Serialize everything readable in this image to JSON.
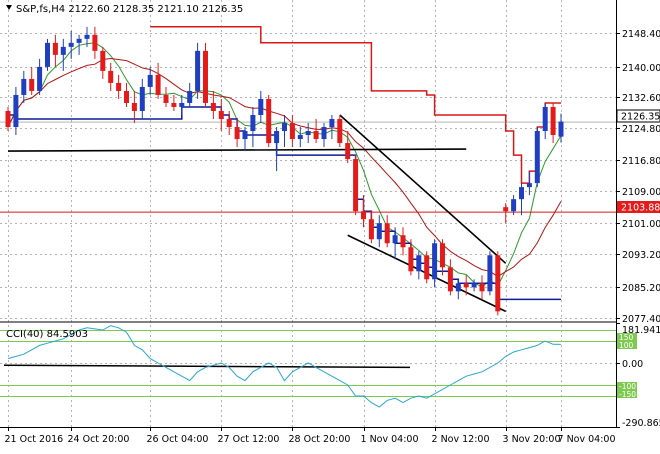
{
  "chart_title": "S&P,fs,H4  2122.60 2128.35 2121.10 2126.35",
  "price_tags": {
    "current": "2126.35",
    "line": "2103.88"
  },
  "cci_label": "CCI(40) 84.5903",
  "cci_levels": [
    "150",
    "100",
    "-100",
    "-150"
  ],
  "colors": {
    "bull": "#1f3fc0",
    "bear": "#e41b1b",
    "ma_fast": "#2f9a2f",
    "ma_slow": "#b41414",
    "step": "#0c1c96",
    "resistance": "#d81818",
    "cci": "#2aa7cf",
    "cci_level": "#7ec94f",
    "trendline": "#000000",
    "grid": "#b4b4b4"
  },
  "chart_data": [
    {
      "type": "candlestick",
      "title": "S&P,fs,H4  2122.60 2128.35 2121.10 2126.35",
      "ohlc_last": {
        "open": 2122.6,
        "high": 2128.35,
        "low": 2121.1,
        "close": 2126.35
      },
      "x_tick_labels": [
        "21 Oct 2016",
        "24 Oct 20:00",
        "26 Oct 04:00",
        "27 Oct 12:00",
        "28 Oct 20:00",
        "1 Nov 04:00",
        "2 Nov 12:00",
        "3 Nov 20:00",
        "7 Nov 04:00"
      ],
      "y_tick_labels": [
        "2148.40",
        "2140.00",
        "2132.60",
        "2124.80",
        "2116.80",
        "2109.00",
        "2101.00",
        "2093.20",
        "2085.20",
        "2077.40"
      ],
      "ylim": [
        2076.6,
        2152.2
      ],
      "horizontal_level": 2103.88,
      "current_price": 2126.35,
      "candles": [
        [
          2129,
          2130,
          2124,
          2125
        ],
        [
          2125,
          2135,
          2123,
          2133
        ],
        [
          2133,
          2139,
          2131,
          2137
        ],
        [
          2137,
          2140,
          2133,
          2134
        ],
        [
          2134,
          2142,
          2133,
          2140
        ],
        [
          2140,
          2147,
          2139,
          2146
        ],
        [
          2146,
          2148,
          2140,
          2143
        ],
        [
          2143,
          2147,
          2139,
          2145
        ],
        [
          2145,
          2149,
          2142,
          2146
        ],
        [
          2146,
          2148,
          2143,
          2147
        ],
        [
          2147,
          2150,
          2145,
          2148
        ],
        [
          2148,
          2150,
          2142,
          2144
        ],
        [
          2144,
          2145,
          2137,
          2139
        ],
        [
          2139,
          2141,
          2134,
          2136
        ],
        [
          2136,
          2138,
          2132,
          2134
        ],
        [
          2134,
          2136,
          2130,
          2131
        ],
        [
          2131,
          2134,
          2126,
          2129
        ],
        [
          2129,
          2137,
          2127,
          2135
        ],
        [
          2135,
          2140,
          2133,
          2138
        ],
        [
          2138,
          2141,
          2132,
          2133
        ],
        [
          2133,
          2135,
          2130,
          2131
        ],
        [
          2131,
          2133,
          2129,
          2130
        ],
        [
          2130,
          2133,
          2128,
          2131
        ],
        [
          2131,
          2136,
          2130,
          2134
        ],
        [
          2134,
          2146,
          2132,
          2144
        ],
        [
          2144,
          2146,
          2130,
          2131
        ],
        [
          2131,
          2134,
          2127,
          2129
        ],
        [
          2129,
          2132,
          2124,
          2127
        ],
        [
          2127,
          2129,
          2123,
          2125
        ],
        [
          2125,
          2127,
          2120,
          2122
        ],
        [
          2122,
          2125,
          2119,
          2124
        ],
        [
          2124,
          2130,
          2120,
          2128
        ],
        [
          2128,
          2134,
          2126,
          2132
        ],
        [
          2132,
          2133,
          2120,
          2121
        ],
        [
          2121,
          2125,
          2114,
          2124
        ],
        [
          2124,
          2128,
          2120,
          2126
        ],
        [
          2126,
          2128,
          2120,
          2122
        ],
        [
          2122,
          2125,
          2120,
          2123
        ],
        [
          2123,
          2126,
          2121,
          2124
        ],
        [
          2124,
          2127,
          2121,
          2122
        ],
        [
          2122,
          2126,
          2120,
          2125
        ],
        [
          2125,
          2128,
          2122,
          2127
        ],
        [
          2127,
          2128,
          2120,
          2121
        ],
        [
          2121,
          2124,
          2116,
          2117
        ],
        [
          2117,
          2118,
          2103,
          2104
        ],
        [
          2104,
          2108,
          2100,
          2102
        ],
        [
          2102,
          2104,
          2096,
          2097
        ],
        [
          2097,
          2103,
          2095,
          2101
        ],
        [
          2101,
          2103,
          2095,
          2096
        ],
        [
          2096,
          2100,
          2092,
          2098
        ],
        [
          2098,
          2100,
          2093,
          2095
        ],
        [
          2095,
          2097,
          2088,
          2089
        ],
        [
          2089,
          2094,
          2087,
          2093
        ],
        [
          2093,
          2094,
          2086,
          2087
        ],
        [
          2087,
          2097,
          2085,
          2096
        ],
        [
          2096,
          2097,
          2088,
          2090
        ],
        [
          2090,
          2092,
          2083,
          2084
        ],
        [
          2084,
          2087,
          2082,
          2086
        ],
        [
          2086,
          2088,
          2083,
          2085
        ],
        [
          2085,
          2087,
          2084,
          2086
        ],
        [
          2086,
          2088,
          2082,
          2084
        ],
        [
          2084,
          2094,
          2083,
          2093
        ],
        [
          2093,
          2094,
          2078,
          2079
        ],
        [
          2105,
          2106,
          2101,
          2104
        ],
        [
          2104,
          2108,
          2103,
          2107
        ],
        [
          2107,
          2111,
          2103,
          2110
        ],
        [
          2110,
          2114,
          2108,
          2111
        ],
        [
          2111,
          2125,
          2110,
          2124
        ],
        [
          2124,
          2131,
          2122,
          2130
        ],
        [
          2130,
          2131,
          2121,
          2123
        ],
        [
          2122.6,
          2128.35,
          2121.1,
          2126.35
        ]
      ]
    },
    {
      "type": "line",
      "title": "CCI(40) 84.5903",
      "indicator": "CCI",
      "period": 40,
      "last_value": 84.5903,
      "y_tick_labels": [
        "181.9414",
        "0.00",
        "-290.8650"
      ],
      "ylim": [
        -290.865,
        181.9414
      ],
      "levels": [
        150,
        100,
        -100,
        -150
      ],
      "values": [
        20,
        30,
        40,
        60,
        80,
        90,
        100,
        110,
        130,
        150,
        160,
        155,
        150,
        170,
        160,
        140,
        80,
        60,
        20,
        0,
        -20,
        -40,
        -60,
        -80,
        -40,
        -20,
        -10,
        0,
        -20,
        -60,
        -80,
        -40,
        -20,
        0,
        -20,
        -80,
        -40,
        -20,
        0,
        -20,
        -40,
        -60,
        -80,
        -100,
        -150,
        -150,
        -180,
        -200,
        -170,
        -160,
        -180,
        -160,
        -150,
        -160,
        -140,
        -120,
        -100,
        -80,
        -60,
        -50,
        -40,
        -20,
        0,
        30,
        50,
        60,
        70,
        80,
        100,
        85,
        84.5903
      ]
    }
  ]
}
